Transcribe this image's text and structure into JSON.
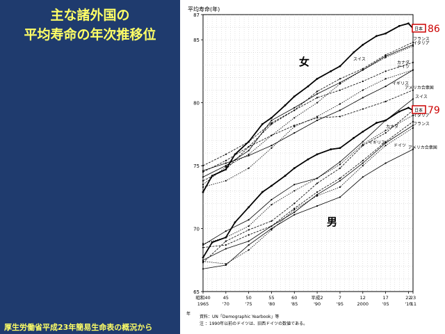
{
  "left_panel": {
    "title_line1": "主な諸外国の",
    "title_line2": "平均寿命の年次推移位",
    "source": "厚生労働省平成23年簡易生命表の概況から"
  },
  "colors": {
    "panel_bg": "#1f3b6e",
    "title_text": "#ffff66",
    "highlight_box": "#cc0000",
    "japan_line": "#000000"
  },
  "chart_data": {
    "type": "line",
    "ylabel": "平均寿命(年)",
    "ylim": [
      65,
      87
    ],
    "y_ticks": [
      65,
      70,
      75,
      80,
      85,
      87
    ],
    "xlim": [
      1965,
      2011
    ],
    "x_ticks": [
      {
        "x": 1965,
        "top": "昭和40",
        "bottom": "1965"
      },
      {
        "x": 1970,
        "top": "45",
        "bottom": "'70"
      },
      {
        "x": 1975,
        "top": "50",
        "bottom": "'75"
      },
      {
        "x": 1980,
        "top": "55",
        "bottom": "'80"
      },
      {
        "x": 1985,
        "top": "60",
        "bottom": "'85"
      },
      {
        "x": 1990,
        "top": "平成2",
        "bottom": "'90"
      },
      {
        "x": 1995,
        "top": "7",
        "bottom": "'95"
      },
      {
        "x": 2000,
        "top": "12",
        "bottom": "2000"
      },
      {
        "x": 2005,
        "top": "17",
        "bottom": "'05"
      },
      {
        "x": 2010,
        "top": "22",
        "bottom": "'10"
      },
      {
        "x": 2011,
        "top": "23",
        "bottom": "'11"
      }
    ],
    "x_era_note": "年",
    "grid": true,
    "group_labels": {
      "female": "女",
      "male": "男"
    },
    "highlights": [
      {
        "series_label": "日本",
        "value": "86"
      },
      {
        "series_label": "日本",
        "value": "79"
      }
    ],
    "footnote_lines": [
      "資料：UN「Demographic Yearbook」等",
      "注 ：1990年以前のドイツは、旧西ドイツの数値である。"
    ],
    "series": [
      {
        "name": "日本",
        "group": "female",
        "bold": true,
        "x": [
          1965,
          1967,
          1970,
          1972,
          1975,
          1978,
          1980,
          1983,
          1985,
          1988,
          1990,
          1993,
          1995,
          1998,
          2000,
          2003,
          2005,
          2008,
          2010,
          2011
        ],
        "values": [
          72.9,
          74.2,
          74.7,
          75.9,
          76.9,
          78.3,
          78.8,
          79.8,
          80.5,
          81.3,
          81.9,
          82.5,
          82.9,
          84.0,
          84.6,
          85.3,
          85.5,
          86.1,
          86.3,
          85.9
        ]
      },
      {
        "name": "フランス",
        "group": "female",
        "x": [
          1965,
          1970,
          1975,
          1980,
          1985,
          1990,
          1995,
          2000,
          2005,
          2011
        ],
        "values": [
          75.0,
          75.9,
          76.9,
          78.4,
          79.4,
          80.9,
          81.9,
          82.7,
          83.8,
          84.8
        ]
      },
      {
        "name": "イタリア",
        "group": "female",
        "x": [
          1965,
          1970,
          1975,
          1980,
          1985,
          1990,
          1995,
          2000,
          2005,
          2011
        ],
        "values": [
          73.5,
          74.9,
          75.9,
          77.4,
          78.8,
          80.0,
          81.5,
          82.6,
          83.6,
          84.5
        ]
      },
      {
        "name": "スイス",
        "group": "female",
        "x": [
          1965,
          1970,
          1975,
          1980,
          1985,
          1990,
          1995,
          2000,
          2005,
          2011
        ],
        "values": [
          74.1,
          75.0,
          76.2,
          78.6,
          79.6,
          80.7,
          81.6,
          82.6,
          83.7,
          84.6
        ]
      },
      {
        "name": "カナダ",
        "group": "female",
        "x": [
          1965,
          1970,
          1975,
          1980,
          1985,
          1990,
          1995,
          2000,
          2005,
          2011
        ],
        "values": [
          74.5,
          75.4,
          76.5,
          78.3,
          79.4,
          80.4,
          81.0,
          81.7,
          82.5,
          83.2
        ]
      },
      {
        "name": "ドイツ",
        "group": "female",
        "x": [
          1965,
          1970,
          1975,
          1980,
          1985,
          1990,
          1995,
          2000,
          2005,
          2011
        ],
        "values": [
          73.3,
          73.8,
          74.8,
          76.4,
          78.1,
          78.9,
          79.9,
          81.0,
          81.9,
          82.6
        ]
      },
      {
        "name": "イギリス",
        "group": "female",
        "x": [
          1965,
          1970,
          1975,
          1980,
          1985,
          1990,
          1995,
          2000,
          2005,
          2011
        ],
        "values": [
          74.6,
          75.2,
          75.8,
          76.6,
          77.6,
          78.6,
          79.4,
          80.4,
          81.3,
          82.6
        ]
      },
      {
        "name": "アメリカ合衆国",
        "group": "female",
        "x": [
          1965,
          1970,
          1975,
          1980,
          1985,
          1990,
          1995,
          2000,
          2005,
          2011
        ],
        "values": [
          73.8,
          74.7,
          76.5,
          77.4,
          78.2,
          78.8,
          78.9,
          79.5,
          80.1,
          81.0
        ]
      },
      {
        "name": "日本",
        "group": "male",
        "bold": true,
        "x": [
          1965,
          1967,
          1970,
          1972,
          1975,
          1978,
          1980,
          1983,
          1985,
          1988,
          1990,
          1993,
          1995,
          1998,
          2000,
          2003,
          2005,
          2008,
          2010,
          2011
        ],
        "values": [
          67.7,
          68.9,
          69.3,
          70.5,
          71.7,
          72.9,
          73.4,
          74.2,
          74.8,
          75.5,
          75.9,
          76.3,
          76.4,
          77.2,
          77.7,
          78.4,
          78.6,
          79.3,
          79.6,
          79.4
        ]
      },
      {
        "name": "スイス",
        "group": "male",
        "x": [
          1965,
          1970,
          1975,
          1980,
          1985,
          1990,
          1995,
          2000,
          2005,
          2011
        ],
        "values": [
          68.7,
          69.8,
          70.7,
          72.3,
          73.5,
          74.0,
          75.3,
          76.9,
          78.6,
          80.3
        ]
      },
      {
        "name": "イタリア",
        "group": "male",
        "x": [
          1965,
          1970,
          1975,
          1980,
          1985,
          1990,
          1995,
          2000,
          2005,
          2011
        ],
        "values": [
          67.3,
          69.0,
          69.9,
          70.6,
          72.0,
          73.6,
          74.8,
          76.6,
          77.6,
          79.4
        ]
      },
      {
        "name": "カナダ",
        "group": "male",
        "x": [
          1965,
          1970,
          1975,
          1980,
          1985,
          1990,
          1995,
          2000,
          2005,
          2011
        ],
        "values": [
          68.8,
          69.3,
          70.2,
          71.9,
          73.0,
          74.0,
          75.1,
          76.7,
          77.8,
          79.0
        ]
      },
      {
        "name": "フランス",
        "group": "male",
        "x": [
          1965,
          1970,
          1975,
          1980,
          1985,
          1990,
          1995,
          2000,
          2005,
          2011
        ],
        "values": [
          67.5,
          68.4,
          69.0,
          70.2,
          71.3,
          72.7,
          73.8,
          75.2,
          76.8,
          78.2
        ]
      },
      {
        "name": "イギリス",
        "group": "male",
        "x": [
          1965,
          1970,
          1975,
          1980,
          1985,
          1990,
          1995,
          2000,
          2005,
          2011
        ],
        "values": [
          68.5,
          68.7,
          69.5,
          70.2,
          71.6,
          72.9,
          74.0,
          75.4,
          76.9,
          78.5
        ]
      },
      {
        "name": "ドイツ",
        "group": "male",
        "x": [
          1965,
          1970,
          1975,
          1980,
          1985,
          1990,
          1995,
          2000,
          2005,
          2011
        ],
        "values": [
          67.4,
          67.2,
          68.3,
          69.9,
          71.5,
          72.6,
          73.3,
          75.0,
          76.6,
          78.0
        ]
      },
      {
        "name": "アメリカ合衆国",
        "group": "male",
        "x": [
          1965,
          1970,
          1975,
          1980,
          1985,
          1990,
          1995,
          2000,
          2005,
          2011
        ],
        "values": [
          66.8,
          67.1,
          68.7,
          70.0,
          71.1,
          71.8,
          72.5,
          74.1,
          75.2,
          76.3
        ]
      }
    ]
  }
}
